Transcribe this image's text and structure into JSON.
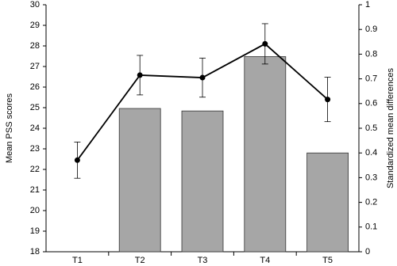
{
  "chart_data": {
    "type": "bar-line",
    "categories": [
      "T1",
      "T2",
      "T3",
      "T4",
      "T5"
    ],
    "ylabel": "Mean PSS scores",
    "y2label": "Standardized mean differences",
    "ylim": [
      18,
      30
    ],
    "yticks": [
      18,
      19,
      20,
      21,
      22,
      23,
      24,
      25,
      26,
      27,
      28,
      29,
      30
    ],
    "y2lim": [
      0,
      1
    ],
    "y2ticks": [
      0,
      0.1,
      0.2,
      0.3,
      0.4,
      0.5,
      0.6,
      0.7,
      0.8,
      0.9,
      1
    ],
    "series": [
      {
        "type": "bar",
        "axis": "y2",
        "color": "#a6a6a6",
        "values": [
          null,
          0.58,
          0.57,
          0.79,
          0.4
        ]
      },
      {
        "type": "line",
        "axis": "y",
        "color": "#000000",
        "values": [
          22.45,
          26.58,
          26.46,
          28.1,
          25.4
        ],
        "errors": [
          0.88,
          0.96,
          0.95,
          0.98,
          1.08
        ]
      }
    ]
  }
}
